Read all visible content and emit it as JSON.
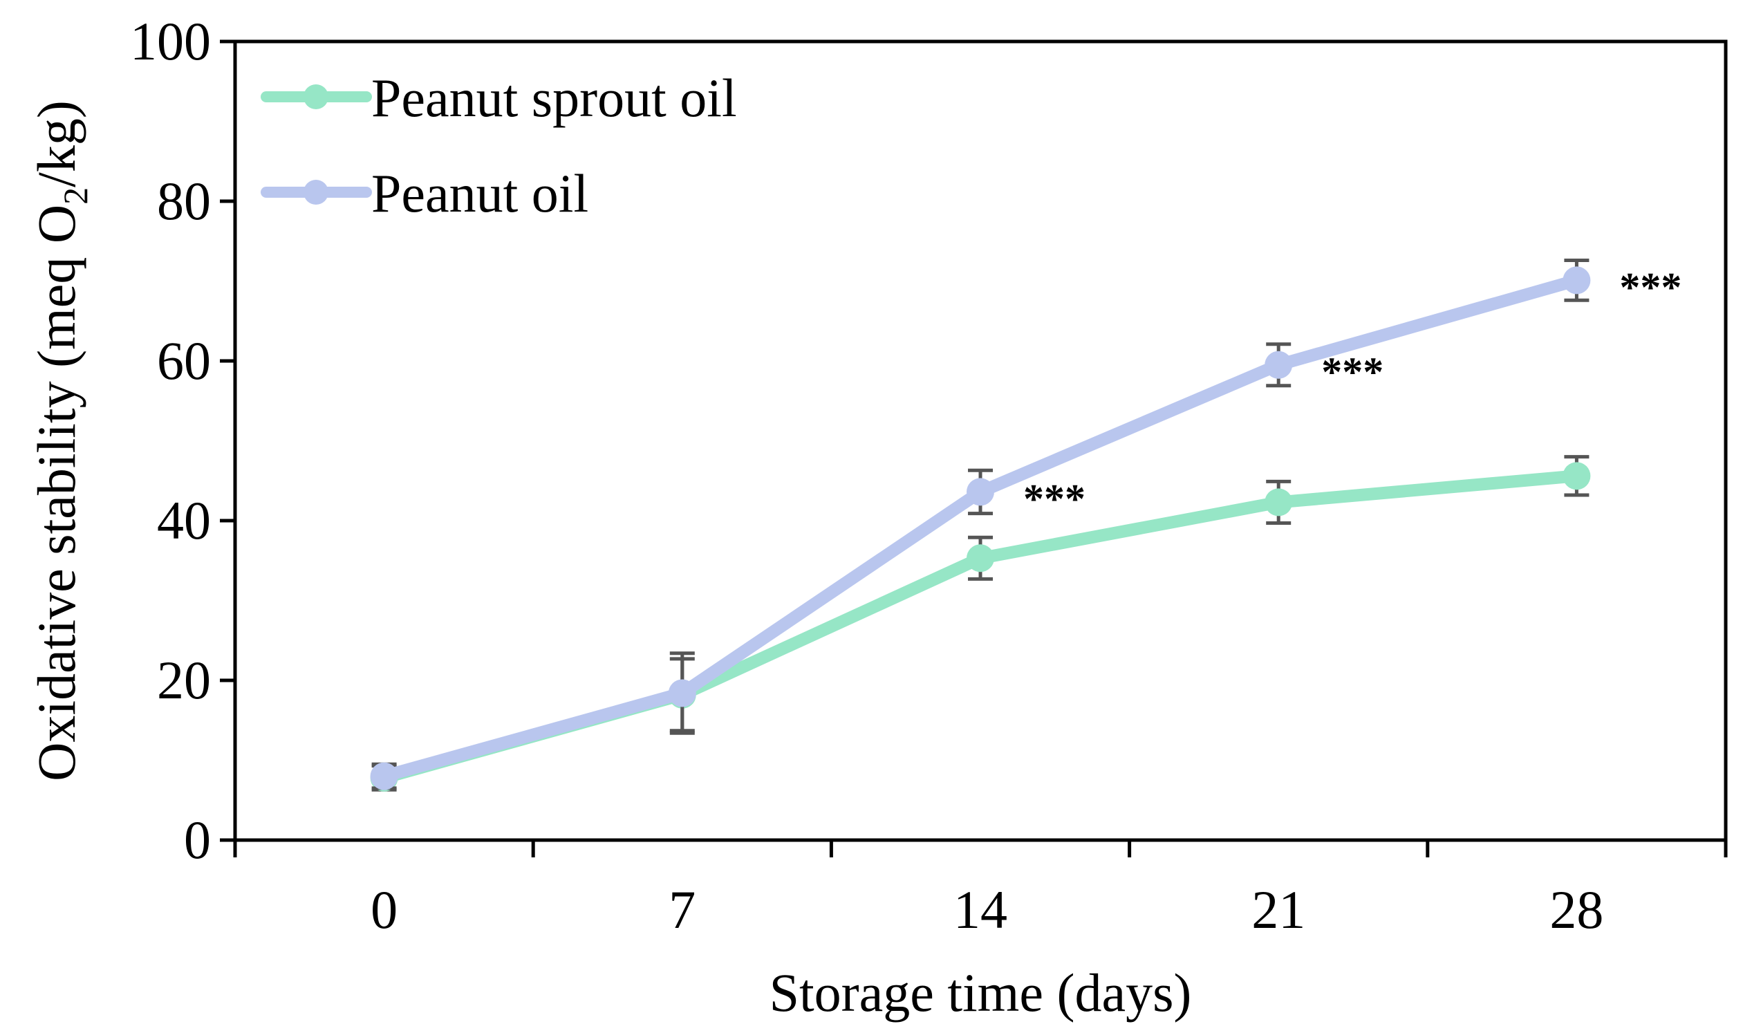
{
  "chart_data": {
    "type": "line",
    "xlabel": "Storage time (days)",
    "ylabel_main": "Oxidative stability (meq O",
    "ylabel_sub": "2",
    "ylabel_tail": "/kg)",
    "categories": [
      "0",
      "7",
      "14",
      "21",
      "28"
    ],
    "x": [
      0,
      7,
      14,
      21,
      28
    ],
    "ylim": [
      0,
      100
    ],
    "yticks": [
      "0",
      "20",
      "40",
      "60",
      "80",
      "100"
    ],
    "grid": false,
    "legend_position": "top-left",
    "series": [
      {
        "name": "Peanut sprout oil",
        "color": "#96e6c6",
        "values": [
          7.8,
          18.2,
          35.3,
          42.3,
          45.6
        ],
        "errors": [
          1.5,
          4.5,
          2.6,
          2.6,
          2.4
        ],
        "annotations": [
          "",
          "",
          "",
          "",
          ""
        ]
      },
      {
        "name": "Peanut oil",
        "color": "#b9c6ee",
        "values": [
          8.0,
          18.4,
          43.6,
          59.5,
          70.1
        ],
        "errors": [
          1.5,
          5.0,
          2.7,
          2.6,
          2.5
        ],
        "annotations": [
          "",
          "",
          "***",
          "***",
          "***"
        ]
      }
    ],
    "errorbar_color": "#555555"
  }
}
